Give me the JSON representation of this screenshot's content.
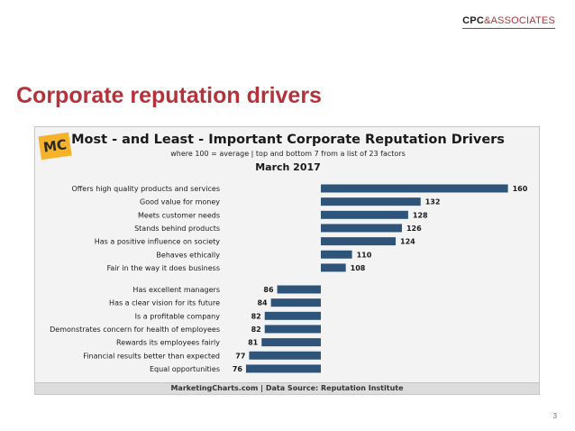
{
  "header": {
    "brand_bold": "CPC",
    "brand_rest": "&ASSOCIATES"
  },
  "slide": {
    "title": "Corporate reputation drivers",
    "page_number": "3"
  },
  "colors": {
    "bar": "#2f5479",
    "title_red": "#b7313a"
  },
  "chart_data": {
    "type": "bar",
    "orientation": "horizontal",
    "title": "Most - and Least - Important Corporate Reputation Drivers",
    "subtitle": "where 100 = average | top and bottom 7 from a list of 23 factors",
    "date": "March 2017",
    "baseline": 100,
    "xlim": [
      60,
      160
    ],
    "logo_text": "MC",
    "footer": "MarketingCharts.com | Data Source: Reputation Institute",
    "groups": [
      {
        "name": "top",
        "categories": [
          "Offers high quality products and services",
          "Good value for money",
          "Meets customer needs",
          "Stands behind products",
          "Has a positive influence on society",
          "Behaves ethically",
          "Fair in the way it does business"
        ],
        "values": [
          160,
          132,
          128,
          126,
          124,
          110,
          108
        ]
      },
      {
        "name": "bottom",
        "categories": [
          "Has excellent managers",
          "Has a clear vision for its future",
          "Is a profitable company",
          "Demonstrates concern for health of employees",
          "Rewards its employees fairly",
          "Financial results better than expected",
          "Equal opportunities"
        ],
        "values": [
          86,
          84,
          82,
          82,
          81,
          77,
          76
        ]
      }
    ]
  }
}
